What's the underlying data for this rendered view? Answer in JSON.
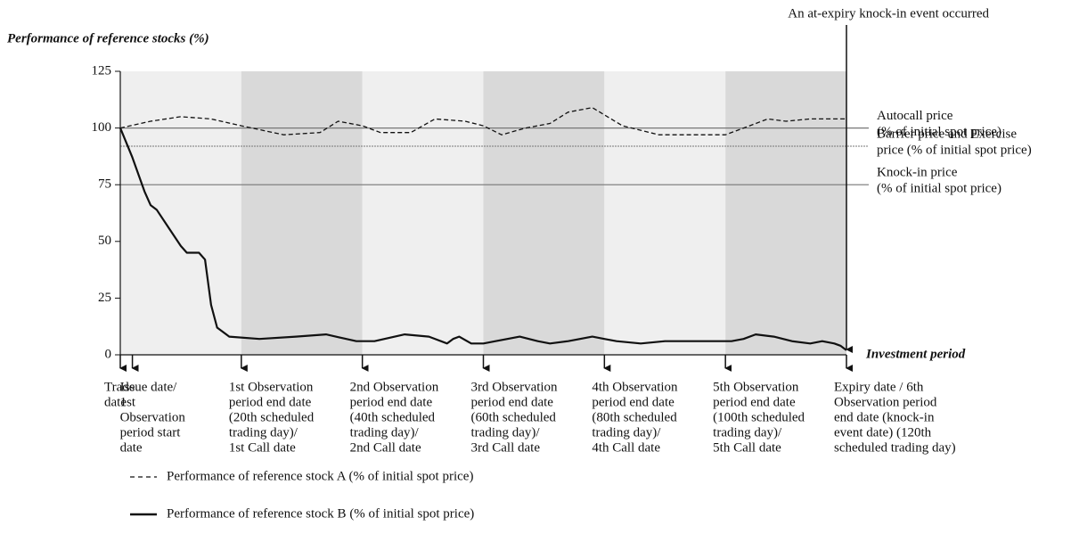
{
  "chart_data": {
    "type": "line",
    "title": "Performance of reference stocks (%)",
    "x_label": "Investment period",
    "annotation": "An at-expiry knock-in event occurred",
    "annotation_x": 120,
    "xlim": [
      0,
      120
    ],
    "ylim": [
      0,
      125
    ],
    "yticks": [
      0,
      25,
      50,
      75,
      100,
      125
    ],
    "period_bands": [
      0,
      20,
      40,
      60,
      80,
      100,
      120
    ],
    "band_colors": [
      "#efefef",
      "#d9d9d9"
    ],
    "reference_lines": [
      {
        "value": 100,
        "style": "solid",
        "label": [
          "Autocall price",
          " (% of initial spot price)"
        ]
      },
      {
        "value": 92,
        "style": "dotted",
        "label": [
          "Barrier price and Exercise",
          "price (% of initial spot price)"
        ]
      },
      {
        "value": 75,
        "style": "solid",
        "label": [
          "Knock-in price",
          "(% of initial spot price)"
        ]
      }
    ],
    "events": [
      {
        "x": 0,
        "label": [
          "Trade",
          "date"
        ]
      },
      {
        "x": 2,
        "label": [
          "Issue date/",
          "1st",
          "Observation",
          "period start",
          "date"
        ]
      },
      {
        "x": 20,
        "label": [
          "1st Observation",
          "period end date",
          "(20th scheduled",
          "trading day)/",
          "1st Call date"
        ]
      },
      {
        "x": 40,
        "label": [
          "2nd Observation",
          "period end date",
          "(40th scheduled",
          "trading day)/",
          "2nd Call date"
        ]
      },
      {
        "x": 60,
        "label": [
          "3rd Observation",
          "period end date",
          "(60th scheduled",
          "trading day)/",
          "3rd Call date"
        ]
      },
      {
        "x": 80,
        "label": [
          "4th Observation",
          "period end date",
          "(80th scheduled",
          "trading day)/",
          "4th Call date"
        ]
      },
      {
        "x": 100,
        "label": [
          "5th Observation",
          "period end date",
          " (100th scheduled",
          " trading day)/",
          "5th Call date"
        ]
      },
      {
        "x": 120,
        "label": [
          "Expiry date / 6th",
          "Observation period",
          "end date (knock-in",
          "event date) (120th",
          "scheduled trading day)"
        ]
      }
    ],
    "series": [
      {
        "name": "Performance of reference stock A (% of initial spot price)",
        "color": "#111111",
        "style": "dashed",
        "x": [
          0,
          5,
          10,
          15,
          20,
          27,
          33,
          36,
          40,
          43,
          48,
          52,
          57,
          60,
          63,
          67,
          71,
          74,
          78,
          83,
          89,
          95,
          100,
          104,
          107,
          110,
          114,
          120
        ],
        "values": [
          100,
          103,
          105,
          104,
          101,
          97,
          98,
          103,
          101,
          98,
          98,
          104,
          103,
          101,
          97,
          100,
          102,
          107,
          109,
          101,
          97,
          97,
          97,
          101,
          104,
          103,
          104,
          104
        ]
      },
      {
        "name": "Performance of reference stock B (% of initial spot price)",
        "color": "#111111",
        "style": "solid",
        "x": [
          0,
          2,
          4,
          5,
          6,
          8,
          10,
          11,
          13,
          14,
          15,
          16,
          18,
          23,
          29,
          34,
          39,
          42,
          47,
          51,
          54,
          55,
          56,
          58,
          60,
          62,
          66,
          69,
          71,
          74,
          78,
          80,
          82,
          86,
          90,
          95,
          100,
          101,
          103,
          105,
          108,
          111,
          114,
          116,
          118,
          119,
          120
        ],
        "values": [
          100,
          87,
          72,
          66,
          64,
          56,
          48,
          45,
          45,
          42,
          22,
          12,
          8,
          7,
          8,
          9,
          6,
          6,
          9,
          8,
          5,
          7,
          8,
          5,
          5,
          6,
          8,
          6,
          5,
          6,
          8,
          7,
          6,
          5,
          6,
          6,
          6,
          6,
          7,
          9,
          8,
          6,
          5,
          6,
          5,
          4,
          2
        ]
      }
    ]
  }
}
